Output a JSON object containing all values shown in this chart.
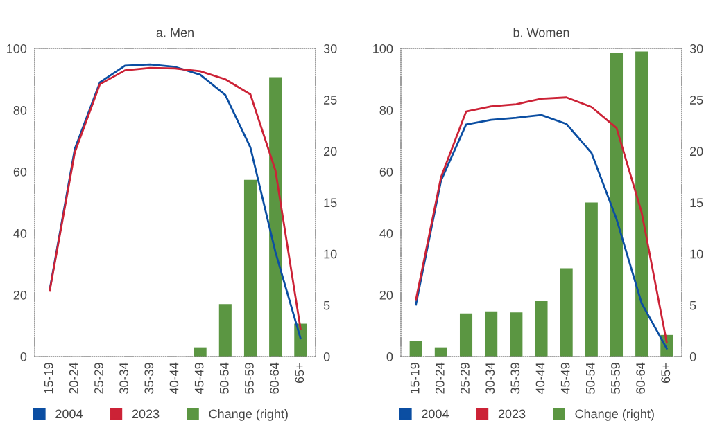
{
  "chart_data": [
    {
      "type": "line",
      "title": "a. Men",
      "categories": [
        "15-19",
        "20-24",
        "25-29",
        "30-34",
        "35-39",
        "40-44",
        "45-49",
        "50-54",
        "55-59",
        "60-64",
        "65+"
      ],
      "series": [
        {
          "name": "2004",
          "color": "#0b4ea2",
          "values": [
            21.7,
            67.4,
            89.0,
            94.4,
            94.8,
            94.0,
            91.5,
            84.9,
            67.9,
            33.9,
            5.9
          ]
        },
        {
          "name": "2023",
          "color": "#cc2236",
          "values": [
            21.4,
            66.3,
            88.4,
            92.9,
            93.7,
            93.5,
            92.6,
            90.0,
            85.1,
            60.4,
            9.0
          ]
        },
        {
          "name": "Change (right)",
          "type": "bar",
          "axis": "y2",
          "color": "#5b9642",
          "values": [
            null,
            null,
            null,
            null,
            null,
            null,
            0.9,
            5.1,
            17.2,
            27.2,
            3.2
          ]
        }
      ],
      "ylim": [
        0,
        100
      ],
      "yticks": [
        0,
        20,
        40,
        60,
        80,
        100
      ],
      "y2lim": [
        0,
        30
      ],
      "y2ticks": [
        0,
        5,
        10,
        15,
        20,
        25,
        30
      ],
      "grid": false,
      "legend": "bottom",
      "line_style": "solid",
      "marker": "none"
    },
    {
      "type": "line",
      "title": "b. Women",
      "categories": [
        "15-19",
        "20-24",
        "25-29",
        "30-34",
        "35-39",
        "40-44",
        "45-49",
        "50-54",
        "55-59",
        "60-64",
        "65+"
      ],
      "series": [
        {
          "name": "2004",
          "color": "#0b4ea2",
          "values": [
            16.9,
            57.1,
            75.3,
            76.8,
            77.5,
            78.4,
            75.5,
            66.1,
            44.6,
            17.3,
            2.6
          ]
        },
        {
          "name": "2023",
          "color": "#cc2236",
          "values": [
            18.4,
            58.2,
            79.5,
            81.2,
            81.9,
            83.7,
            84.1,
            81.0,
            74.2,
            46.8,
            4.6
          ]
        },
        {
          "name": "Change (right)",
          "type": "bar",
          "axis": "y2",
          "color": "#5b9642",
          "values": [
            1.5,
            0.9,
            4.2,
            4.4,
            4.3,
            5.4,
            8.6,
            15.0,
            29.6,
            29.7,
            2.1
          ]
        }
      ],
      "ylim": [
        0,
        100
      ],
      "yticks": [
        0,
        20,
        40,
        60,
        80,
        100
      ],
      "y2lim": [
        0,
        30
      ],
      "y2ticks": [
        0,
        5,
        10,
        15,
        20,
        25,
        30
      ],
      "grid": false,
      "legend": "bottom",
      "line_style": "solid",
      "marker": "none"
    }
  ]
}
